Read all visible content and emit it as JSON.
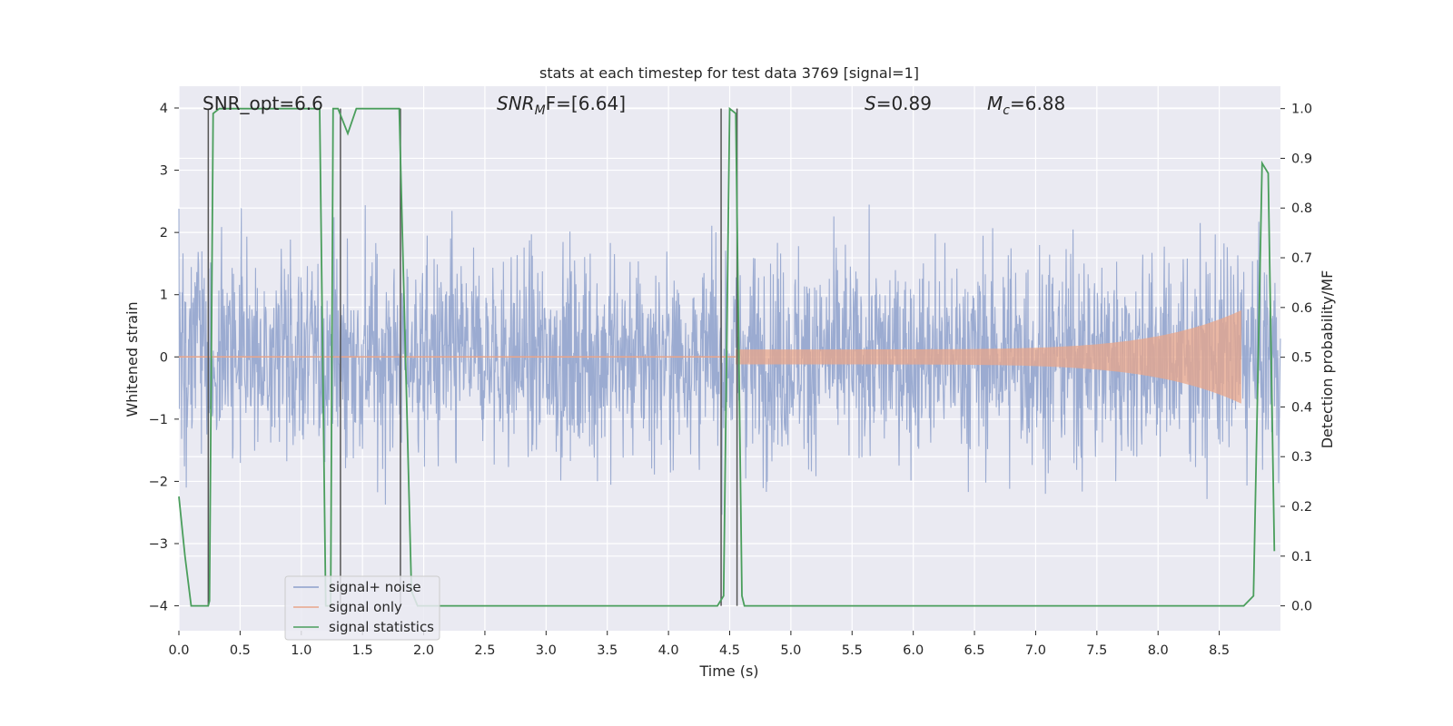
{
  "chart_data": {
    "type": "line",
    "title": "stats at each timestep for test data 3769 [signal=1]",
    "xlabel": "Time (s)",
    "ylabel_left": "Whitened strain",
    "ylabel_right": "Detection probability/MF",
    "xlim": [
      0,
      9.0
    ],
    "ylim_left": [
      -4.4,
      4.35
    ],
    "ylim_right": [
      -0.05,
      1.045
    ],
    "xticks": [
      "0.0",
      "0.5",
      "1.0",
      "1.5",
      "2.0",
      "2.5",
      "3.0",
      "3.5",
      "4.0",
      "4.5",
      "5.0",
      "5.5",
      "6.0",
      "6.5",
      "7.0",
      "7.5",
      "8.0",
      "8.5"
    ],
    "xtick_values": [
      0,
      0.5,
      1,
      1.5,
      2,
      2.5,
      3,
      3.5,
      4,
      4.5,
      5,
      5.5,
      6,
      6.5,
      7,
      7.5,
      8,
      8.5
    ],
    "yticks_left": [
      "4",
      "3",
      "2",
      "1",
      "0",
      "−1",
      "−2",
      "−3",
      "−4"
    ],
    "ytick_values_left": [
      4,
      3,
      2,
      1,
      0,
      -1,
      -2,
      -3,
      -4
    ],
    "yticks_right": [
      "1.0",
      "0.9",
      "0.8",
      "0.7",
      "0.6",
      "0.5",
      "0.4",
      "0.3",
      "0.2",
      "0.1",
      "0.0"
    ],
    "ytick_values_right": [
      1.0,
      0.9,
      0.8,
      0.7,
      0.6,
      0.5,
      0.4,
      0.3,
      0.2,
      0.1,
      0.0
    ],
    "annotations": {
      "snr_opt": "SNR_opt=6.6",
      "snr_mf_prefix": "SNR",
      "snr_mf_sub": "M",
      "snr_mf_rest": "F=[6.64]",
      "s_label": "S",
      "s_value": "=0.89",
      "mc_label": "M",
      "mc_sub": "c",
      "mc_value": "=6.88"
    },
    "legend": {
      "placement": "lower-left",
      "entries": [
        "signal+ noise",
        "signal only",
        "signal statistics"
      ]
    },
    "colors": {
      "noise": "#8da0cb",
      "signal": "#e8a58a",
      "stats": "#4a9e5c",
      "markers": "#555555",
      "background": "#eaeaf2",
      "grid": "#ffffff"
    },
    "series": [
      {
        "name": "signal+ noise",
        "axis": "left",
        "description_range": [
          -4.0,
          4.0
        ],
        "typical_amplitude": 1.6
      },
      {
        "name": "signal only",
        "axis": "left",
        "chirp_start": 4.55,
        "chirp_end": 8.68,
        "start_amplitude": 0.12,
        "end_amplitude": 0.75
      },
      {
        "name": "signal statistics",
        "axis": "right",
        "x": [
          0.0,
          0.05,
          0.1,
          0.24,
          0.25,
          0.28,
          0.33,
          0.4,
          0.45,
          0.5,
          1.0,
          1.15,
          1.2,
          1.24,
          1.26,
          1.3,
          1.38,
          1.45,
          1.8,
          1.9,
          1.95,
          2.0,
          2.1,
          3.5,
          4.4,
          4.45,
          4.5,
          4.55,
          4.6,
          4.62,
          4.7,
          8.7,
          8.78,
          8.85,
          8.9,
          8.95
        ],
        "values": [
          0.22,
          0.1,
          0.0,
          0.0,
          0.01,
          0.99,
          1.0,
          1.0,
          1.0,
          1.0,
          1.0,
          1.0,
          0.0,
          0.0,
          1.0,
          1.0,
          0.95,
          1.0,
          1.0,
          0.03,
          0.0,
          0.0,
          0.0,
          0.0,
          0.0,
          0.02,
          1.0,
          0.99,
          0.02,
          0.0,
          0.0,
          0.0,
          0.02,
          0.89,
          0.87,
          0.11
        ]
      }
    ],
    "marker_lines_x": [
      0.24,
      1.32,
      1.81,
      4.43,
      4.56
    ]
  }
}
